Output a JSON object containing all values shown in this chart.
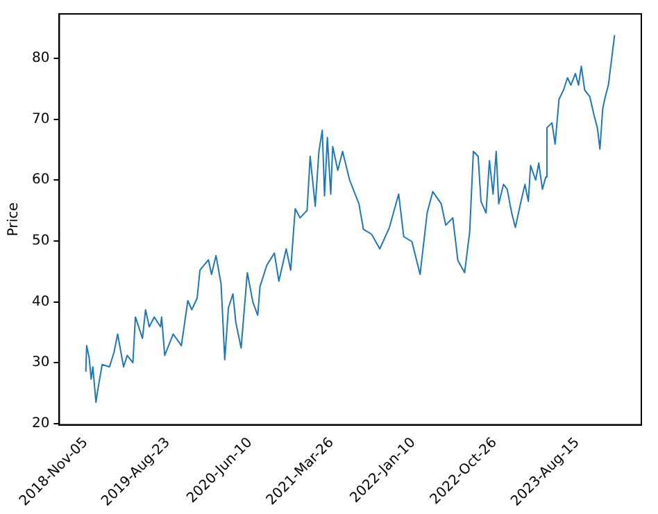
{
  "chart_data": {
    "type": "line",
    "ylabel": "Price",
    "x": [
      "2018-11-05",
      "2018-11-08",
      "2018-11-17",
      "2018-11-24",
      "2018-11-30",
      "2018-12-11",
      "2018-12-17",
      "2019-01-02",
      "2019-01-28",
      "2019-02-13",
      "2019-02-26",
      "2019-03-19",
      "2019-04-01",
      "2019-04-21",
      "2019-04-30",
      "2019-05-25",
      "2019-06-05",
      "2019-06-18",
      "2019-07-06",
      "2019-07-28",
      "2019-08-01",
      "2019-08-12",
      "2019-09-11",
      "2019-10-10",
      "2019-11-02",
      "2019-11-16",
      "2019-12-05",
      "2019-12-15",
      "2020-01-14",
      "2020-01-25",
      "2020-02-10",
      "2020-02-28",
      "2020-03-12",
      "2020-03-25",
      "2020-04-10",
      "2020-04-20",
      "2020-05-09",
      "2020-05-31",
      "2020-06-20",
      "2020-07-07",
      "2020-07-15",
      "2020-08-08",
      "2020-09-04",
      "2020-09-20",
      "2020-10-16",
      "2020-11-01",
      "2020-11-17",
      "2020-12-04",
      "2020-12-29",
      "2021-01-09",
      "2021-01-27",
      "2021-02-09",
      "2021-02-21",
      "2021-03-01",
      "2021-03-11",
      "2021-03-23",
      "2021-03-30",
      "2021-04-17",
      "2021-05-04",
      "2021-05-29",
      "2021-07-01",
      "2021-07-17",
      "2021-08-15",
      "2021-09-13",
      "2021-10-17",
      "2021-11-19",
      "2021-12-07",
      "2022-01-05",
      "2022-02-03",
      "2022-02-28",
      "2022-03-20",
      "2022-04-19",
      "2022-05-05",
      "2022-05-30",
      "2022-06-17",
      "2022-07-11",
      "2022-07-29",
      "2022-08-11",
      "2022-08-28",
      "2022-09-07",
      "2022-09-25",
      "2022-10-07",
      "2022-10-20",
      "2022-10-31",
      "2022-11-09",
      "2022-11-26",
      "2022-12-09",
      "2022-12-25",
      "2023-01-07",
      "2023-01-25",
      "2023-02-10",
      "2023-02-22",
      "2023-03-02",
      "2023-03-20",
      "2023-03-31",
      "2023-04-13",
      "2023-04-25",
      "2023-04-29",
      "2023-05-17",
      "2023-05-28",
      "2023-06-11",
      "2023-06-27",
      "2023-07-11",
      "2023-07-23",
      "2023-08-08",
      "2023-08-19",
      "2023-08-29",
      "2023-09-10",
      "2023-09-28",
      "2023-10-14",
      "2023-10-25",
      "2023-11-03",
      "2023-11-13",
      "2023-11-22",
      "2023-12-03",
      "2023-12-25"
    ],
    "values": [
      28.5,
      32.8,
      30.8,
      27.3,
      29.3,
      23.5,
      25.4,
      29.7,
      29.3,
      31.7,
      34.7,
      29.3,
      31.2,
      30.0,
      37.5,
      34.0,
      38.7,
      35.9,
      37.5,
      35.9,
      37.5,
      31.2,
      34.7,
      32.8,
      40.2,
      38.7,
      40.6,
      45.2,
      46.9,
      44.5,
      47.6,
      42.9,
      30.5,
      39.0,
      41.3,
      36.7,
      32.4,
      44.8,
      39.9,
      37.8,
      42.5,
      46.0,
      48.0,
      43.4,
      48.7,
      45.2,
      55.3,
      53.8,
      55.0,
      63.9,
      55.7,
      64.7,
      68.2,
      57.4,
      67.0,
      57.7,
      65.5,
      61.6,
      64.7,
      60.0,
      56.1,
      51.9,
      51.1,
      48.7,
      52.2,
      57.7,
      50.7,
      49.9,
      44.5,
      54.6,
      58.1,
      56.1,
      52.6,
      53.8,
      46.8,
      44.8,
      51.5,
      64.7,
      63.9,
      56.5,
      54.6,
      63.2,
      57.7,
      64.7,
      56.1,
      59.3,
      58.5,
      54.6,
      52.2,
      56.1,
      59.3,
      56.5,
      62.4,
      60.0,
      62.8,
      58.5,
      60.5,
      68.6,
      69.4,
      65.9,
      73.3,
      74.8,
      76.8,
      75.6,
      77.5,
      75.6,
      78.7,
      74.8,
      73.7,
      70.5,
      68.6,
      65.1,
      71.7,
      73.7,
      75.6,
      83.8
    ],
    "color": "#1f77b4",
    "xlim": [
      "2018-08-03",
      "2024-03-29"
    ],
    "xticks": [
      {
        "value": "2018-11-05",
        "label": "2018-Nov-05"
      },
      {
        "value": "2019-08-23",
        "label": "2019-Aug-23"
      },
      {
        "value": "2020-06-10",
        "label": "2020-Jun-10"
      },
      {
        "value": "2021-03-26",
        "label": "2021-Mar-26"
      },
      {
        "value": "2022-01-10",
        "label": "2022-Jan-10"
      },
      {
        "value": "2022-10-26",
        "label": "2022-Oct-26"
      },
      {
        "value": "2023-08-15",
        "label": "2023-Aug-15"
      }
    ],
    "ylim": [
      19.8,
      87.3
    ],
    "yticks": [
      20,
      30,
      40,
      50,
      60,
      70,
      80
    ]
  }
}
